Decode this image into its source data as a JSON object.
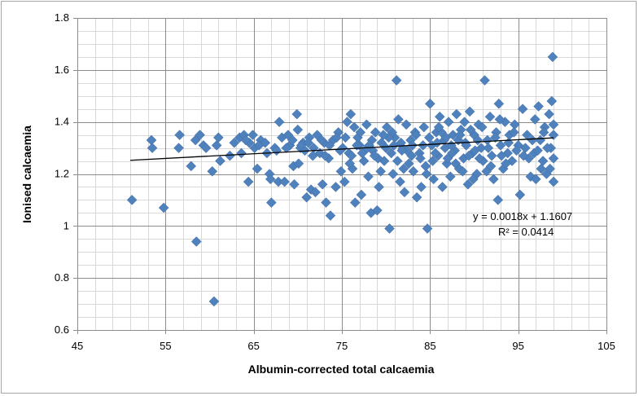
{
  "chart_data": {
    "type": "scatter",
    "title": "",
    "xlabel": "Albumin-corrected total calcaemia",
    "ylabel": "Ionised calcaemia",
    "xlim": [
      45,
      105
    ],
    "ylim": [
      0.6,
      1.8
    ],
    "x_major_ticks": [
      45,
      55,
      65,
      75,
      85,
      95,
      105
    ],
    "y_major_ticks": [
      0.6,
      0.8,
      1,
      1.2,
      1.4,
      1.6,
      1.8
    ],
    "x_minor_step": 2,
    "y_minor_step": 0.05,
    "grid": true,
    "marker_color": "#4f81bd",
    "trendline_color": "#000000",
    "trendline": {
      "slope": 0.0018,
      "intercept": 1.1607,
      "x_range": [
        51,
        99
      ]
    },
    "equation_label": "y = 0.0018x + 1.1607",
    "r2_label": "R² = 0.0414",
    "points": [
      [
        51.2,
        1.1
      ],
      [
        54.8,
        1.07
      ],
      [
        53.4,
        1.33
      ],
      [
        53.5,
        1.3
      ],
      [
        56.6,
        1.35
      ],
      [
        56.5,
        1.3
      ],
      [
        57.9,
        1.23
      ],
      [
        58.4,
        1.33
      ],
      [
        58.9,
        1.35
      ],
      [
        59.3,
        1.31
      ],
      [
        59.6,
        1.3
      ],
      [
        60.3,
        1.21
      ],
      [
        60.8,
        1.31
      ],
      [
        61.0,
        1.34
      ],
      [
        61.2,
        1.25
      ],
      [
        58.5,
        0.94
      ],
      [
        60.5,
        0.71
      ],
      [
        62.3,
        1.27
      ],
      [
        62.8,
        1.32
      ],
      [
        63.4,
        1.34
      ],
      [
        63.6,
        1.28
      ],
      [
        63.9,
        1.35
      ],
      [
        64.4,
        1.17
      ],
      [
        64.5,
        1.32
      ],
      [
        64.9,
        1.35
      ],
      [
        65.1,
        1.3
      ],
      [
        65.4,
        1.22
      ],
      [
        65.8,
        1.33
      ],
      [
        66.5,
        1.28
      ],
      [
        66.8,
        1.2
      ],
      [
        67.0,
        1.09
      ],
      [
        66.9,
        1.18
      ],
      [
        67.4,
        1.3
      ],
      [
        67.6,
        1.29
      ],
      [
        67.9,
        1.4
      ],
      [
        67.8,
        1.17
      ],
      [
        68.2,
        1.34
      ],
      [
        68.5,
        1.17
      ],
      [
        68.9,
        1.35
      ],
      [
        69.1,
        1.31
      ],
      [
        69.5,
        1.23
      ],
      [
        69.6,
        1.16
      ],
      [
        69.9,
        1.43
      ],
      [
        70.0,
        1.37
      ],
      [
        70.1,
        1.24
      ],
      [
        70.3,
        1.3
      ],
      [
        70.6,
        1.32
      ],
      [
        71.0,
        1.11
      ],
      [
        71.3,
        1.34
      ],
      [
        71.5,
        1.14
      ],
      [
        71.8,
        1.3
      ],
      [
        72.0,
        1.13
      ],
      [
        72.2,
        1.35
      ],
      [
        72.5,
        1.28
      ],
      [
        72.8,
        1.16
      ],
      [
        73.0,
        1.32
      ],
      [
        73.2,
        1.09
      ],
      [
        73.5,
        1.26
      ],
      [
        73.7,
        1.04
      ],
      [
        74.0,
        1.33
      ],
      [
        74.3,
        1.15
      ],
      [
        74.6,
        1.36
      ],
      [
        74.9,
        1.21
      ],
      [
        75.1,
        1.3
      ],
      [
        75.3,
        1.17
      ],
      [
        75.6,
        1.4
      ],
      [
        75.8,
        1.28
      ],
      [
        76.0,
        1.43
      ],
      [
        76.2,
        1.22
      ],
      [
        76.5,
        1.09
      ],
      [
        76.8,
        1.34
      ],
      [
        77.0,
        1.31
      ],
      [
        77.2,
        1.12
      ],
      [
        77.5,
        1.25
      ],
      [
        77.8,
        1.39
      ],
      [
        78.0,
        1.19
      ],
      [
        78.3,
        1.05
      ],
      [
        78.5,
        1.29
      ],
      [
        78.8,
        1.36
      ],
      [
        79.0,
        1.06
      ],
      [
        79.2,
        1.15
      ],
      [
        79.5,
        1.32
      ],
      [
        79.8,
        1.25
      ],
      [
        80.1,
        1.38
      ],
      [
        80.4,
        0.99
      ],
      [
        80.6,
        1.28
      ],
      [
        80.8,
        1.2
      ],
      [
        81.0,
        1.34
      ],
      [
        81.2,
        1.56
      ],
      [
        81.4,
        1.41
      ],
      [
        81.6,
        1.17
      ],
      [
        81.9,
        1.3
      ],
      [
        82.1,
        1.13
      ],
      [
        82.3,
        1.39
      ],
      [
        82.6,
        1.24
      ],
      [
        82.8,
        1.33
      ],
      [
        83.1,
        1.21
      ],
      [
        83.3,
        1.36
      ],
      [
        83.5,
        1.11
      ],
      [
        83.8,
        1.28
      ],
      [
        84.0,
        1.15
      ],
      [
        84.3,
        1.38
      ],
      [
        84.5,
        1.23
      ],
      [
        84.7,
        0.99
      ],
      [
        85.0,
        1.47
      ],
      [
        85.2,
        1.31
      ],
      [
        85.4,
        1.18
      ],
      [
        85.7,
        1.36
      ],
      [
        85.9,
        1.27
      ],
      [
        86.1,
        1.42
      ],
      [
        86.4,
        1.15
      ],
      [
        86.6,
        1.33
      ],
      [
        86.9,
        1.24
      ],
      [
        87.1,
        1.4
      ],
      [
        87.3,
        1.19
      ],
      [
        87.6,
        1.35
      ],
      [
        87.8,
        1.29
      ],
      [
        88.0,
        1.43
      ],
      [
        88.3,
        1.22
      ],
      [
        88.5,
        1.37
      ],
      [
        88.8,
        1.26
      ],
      [
        89.0,
        1.32
      ],
      [
        89.3,
        1.16
      ],
      [
        89.5,
        1.44
      ],
      [
        89.8,
        1.28
      ],
      [
        90.0,
        1.35
      ],
      [
        90.3,
        1.2
      ],
      [
        90.5,
        1.39
      ],
      [
        90.8,
        1.3
      ],
      [
        91.0,
        1.25
      ],
      [
        91.2,
        1.56
      ],
      [
        91.5,
        1.33
      ],
      [
        91.8,
        1.42
      ],
      [
        92.0,
        1.27
      ],
      [
        92.2,
        1.18
      ],
      [
        92.5,
        1.36
      ],
      [
        92.7,
        1.1
      ],
      [
        92.8,
        1.47
      ],
      [
        93.0,
        1.31
      ],
      [
        93.3,
        1.22
      ],
      [
        93.5,
        1.4
      ],
      [
        93.8,
        1.28
      ],
      [
        94.0,
        1.35
      ],
      [
        94.3,
        1.25
      ],
      [
        94.6,
        1.39
      ],
      [
        95.2,
        1.12
      ],
      [
        95.5,
        1.45
      ],
      [
        95.8,
        1.3
      ],
      [
        96.0,
        1.35
      ],
      [
        96.4,
        1.19
      ],
      [
        96.8,
        1.28
      ],
      [
        97.0,
        1.18
      ],
      [
        97.3,
        1.46
      ],
      [
        97.5,
        1.33
      ],
      [
        97.8,
        1.25
      ],
      [
        98.0,
        1.38
      ],
      [
        98.2,
        1.2
      ],
      [
        98.5,
        1.43
      ],
      [
        98.7,
        1.3
      ],
      [
        98.8,
        1.48
      ],
      [
        98.9,
        1.65
      ],
      [
        99.0,
        1.35
      ],
      [
        99.0,
        1.17
      ],
      [
        99.0,
        1.26
      ],
      [
        98.6,
        1.22
      ],
      [
        97.9,
        1.36
      ],
      [
        96.9,
        1.41
      ],
      [
        79.1,
        1.26
      ],
      [
        80.7,
        1.36
      ],
      [
        82.4,
        1.29
      ],
      [
        84.9,
        1.34
      ],
      [
        86.7,
        1.3
      ],
      [
        88.2,
        1.33
      ],
      [
        90.1,
        1.29
      ],
      [
        76.7,
        1.31
      ],
      [
        78.4,
        1.33
      ],
      [
        83.9,
        1.26
      ],
      [
        87.4,
        1.31
      ],
      [
        89.6,
        1.37
      ],
      [
        91.6,
        1.3
      ],
      [
        93.9,
        1.32
      ],
      [
        75.4,
        1.34
      ],
      [
        77.6,
        1.29
      ],
      [
        81.7,
        1.32
      ],
      [
        85.6,
        1.28
      ],
      [
        86.3,
        1.36
      ],
      [
        89.1,
        1.31
      ],
      [
        92.4,
        1.34
      ],
      [
        95.0,
        1.31
      ],
      [
        73.6,
        1.31
      ],
      [
        74.8,
        1.29
      ],
      [
        72.7,
        1.33
      ],
      [
        71.2,
        1.32
      ],
      [
        70.8,
        1.29
      ],
      [
        69.4,
        1.33
      ],
      [
        68.7,
        1.3
      ],
      [
        66.3,
        1.32
      ],
      [
        65.6,
        1.31
      ],
      [
        64.1,
        1.33
      ],
      [
        97.6,
        1.22
      ],
      [
        96.2,
        1.26
      ],
      [
        94.8,
        1.29
      ],
      [
        93.1,
        1.27
      ],
      [
        91.9,
        1.23
      ],
      [
        90.6,
        1.26
      ],
      [
        88.7,
        1.21
      ],
      [
        87.0,
        1.26
      ],
      [
        85.3,
        1.25
      ],
      [
        84.2,
        1.31
      ],
      [
        82.9,
        1.27
      ],
      [
        81.3,
        1.25
      ],
      [
        80.0,
        1.3
      ],
      [
        78.7,
        1.27
      ],
      [
        77.3,
        1.28
      ],
      [
        76.1,
        1.27
      ],
      [
        86.0,
        1.38
      ],
      [
        88.9,
        1.4
      ],
      [
        83.4,
        1.35
      ],
      [
        80.3,
        1.34
      ],
      [
        77.1,
        1.36
      ],
      [
        74.4,
        1.34
      ],
      [
        90.9,
        1.38
      ],
      [
        92.9,
        1.41
      ],
      [
        94.5,
        1.36
      ],
      [
        96.6,
        1.33
      ],
      [
        98.3,
        1.3
      ],
      [
        87.9,
        1.24
      ],
      [
        84.6,
        1.2
      ],
      [
        82.0,
        1.22
      ],
      [
        79.4,
        1.21
      ],
      [
        75.9,
        1.24
      ],
      [
        73.1,
        1.27
      ],
      [
        71.7,
        1.27
      ],
      [
        70.4,
        1.31
      ],
      [
        89.9,
        1.18
      ],
      [
        91.4,
        1.21
      ],
      [
        93.6,
        1.24
      ],
      [
        95.6,
        1.27
      ],
      [
        97.2,
        1.29
      ],
      [
        99.0,
        1.39
      ],
      [
        85.8,
        1.32
      ],
      [
        86.8,
        1.34
      ],
      [
        87.5,
        1.28
      ],
      [
        88.4,
        1.35
      ],
      [
        89.4,
        1.27
      ],
      [
        90.4,
        1.33
      ],
      [
        83.0,
        1.31
      ],
      [
        81.8,
        1.29
      ],
      [
        80.9,
        1.31
      ],
      [
        79.7,
        1.35
      ],
      [
        78.1,
        1.31
      ],
      [
        76.4,
        1.38
      ]
    ]
  }
}
